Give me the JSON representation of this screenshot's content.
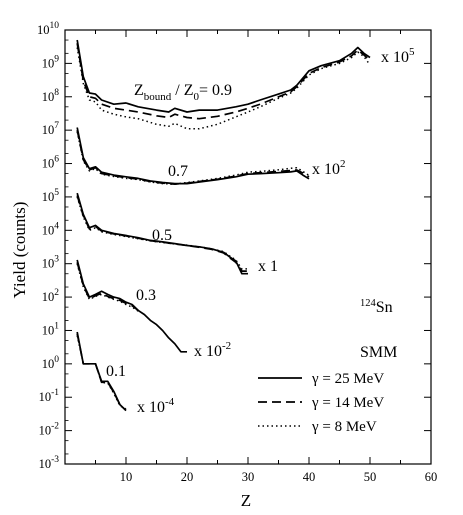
{
  "chart_data": {
    "type": "line",
    "title": "",
    "xlabel": "Z",
    "ylabel": "Yield (counts)",
    "xlim": [
      0,
      60
    ],
    "ylim": [
      0.001,
      10000000000
    ],
    "y_scale": "log",
    "x_ticks": [
      "10",
      "20",
      "30",
      "40",
      "50",
      "60"
    ],
    "y_ticks": [
      {
        "base": "10",
        "exp": "10"
      },
      {
        "base": "10",
        "exp": "9"
      },
      {
        "base": "10",
        "exp": "8"
      },
      {
        "base": "10",
        "exp": "7"
      },
      {
        "base": "10",
        "exp": "6"
      },
      {
        "base": "10",
        "exp": "5"
      },
      {
        "base": "10",
        "exp": "4"
      },
      {
        "base": "10",
        "exp": "3"
      },
      {
        "base": "10",
        "exp": "2"
      },
      {
        "base": "10",
        "exp": "1"
      },
      {
        "base": "10",
        "exp": "0"
      },
      {
        "base": "10",
        "exp": "-1"
      },
      {
        "base": "10",
        "exp": "-2"
      },
      {
        "base": "10",
        "exp": "-3"
      }
    ],
    "grid": false,
    "legend_position": "bottom-right",
    "legend": [
      {
        "label": "γ = 25 MeV",
        "dash": "solid"
      },
      {
        "label": "γ = 14 MeV",
        "dash": "dashed"
      },
      {
        "label": "γ =  8 MeV",
        "dash": "dotted"
      }
    ],
    "annotations": {
      "nucleus": {
        "mass": "124",
        "symbol": "Sn"
      },
      "model": "SMM"
    },
    "groups": [
      {
        "ratio_prefix": "Z",
        "ratio_sub": "bound",
        "ratio_mid": " / Z",
        "ratio_sub2": "0",
        "ratio_value": "= 0.9",
        "scale_label": {
          "base": "x 10",
          "exp": "5"
        },
        "series": [
          {
            "dash": "solid",
            "x": [
              2,
              3,
              4,
              5,
              6,
              8,
              10,
              12,
              15,
              17,
              18,
              20,
              22,
              25,
              28,
              30,
              32,
              35,
              37,
              38,
              40,
              42,
              45,
              47,
              48,
              49,
              50
            ],
            "y": [
              5000000000.0,
              400000000.0,
              130000000.0,
              120000000.0,
              80000000.0,
              60000000.0,
              65000000.0,
              50000000.0,
              40000000.0,
              35000000.0,
              45000000.0,
              35000000.0,
              40000000.0,
              40000000.0,
              50000000.0,
              60000000.0,
              80000000.0,
              120000000.0,
              160000000.0,
              220000000.0,
              600000000.0,
              850000000.0,
              1200000000.0,
              2000000000.0,
              3000000000.0,
              2000000000.0,
              1500000000.0
            ]
          },
          {
            "dash": "dashed",
            "x": [
              2,
              3,
              4,
              5,
              6,
              8,
              10,
              12,
              15,
              17,
              18,
              20,
              22,
              25,
              28,
              30,
              32,
              35,
              37,
              38,
              40,
              42,
              45,
              47,
              48,
              49,
              50
            ],
            "y": [
              4000000000.0,
              300000000.0,
              100000000.0,
              90000000.0,
              60000000.0,
              45000000.0,
              40000000.0,
              35000000.0,
              27000000.0,
              24000000.0,
              30000000.0,
              24000000.0,
              22000000.0,
              26000000.0,
              35000000.0,
              45000000.0,
              60000000.0,
              100000000.0,
              140000000.0,
              200000000.0,
              500000000.0,
              750000000.0,
              1100000000.0,
              1700000000.0,
              2500000000.0,
              1800000000.0,
              1200000000.0
            ]
          },
          {
            "dash": "dotted",
            "x": [
              2,
              3,
              4,
              5,
              6,
              8,
              10,
              12,
              15,
              17,
              18,
              20,
              22,
              25,
              28,
              30,
              32,
              35,
              37,
              38,
              40,
              42,
              45,
              47,
              48,
              49,
              50
            ],
            "y": [
              3000000000.0,
              250000000.0,
              80000000.0,
              70000000.0,
              40000000.0,
              30000000.0,
              25000000.0,
              22000000.0,
              15000000.0,
              13000000.0,
              16000000.0,
              11000000.0,
              11000000.0,
              15000000.0,
              25000000.0,
              35000000.0,
              50000000.0,
              90000000.0,
              130000000.0,
              180000000.0,
              450000000.0,
              700000000.0,
              1000000000.0,
              1500000000.0,
              2200000000.0,
              1600000000.0,
              900000000.0
            ]
          }
        ]
      },
      {
        "ratio_value": "0.7",
        "scale_label": {
          "base": "x 10",
          "exp": "2"
        },
        "series": [
          {
            "dash": "solid",
            "x": [
              2,
              3,
              4,
              5,
              6,
              8,
              10,
              12,
              14,
              16,
              18,
              20,
              22,
              25,
              28,
              30,
              32,
              35,
              37,
              38,
              39,
              40
            ],
            "y": [
              12000000.0,
              1500000.0,
              700000.0,
              800000.0,
              550000.0,
              450000.0,
              400000.0,
              360000.0,
              300000.0,
              270000.0,
              250000.0,
              250000.0,
              280000.0,
              330000.0,
              400000.0,
              480000.0,
              500000.0,
              530000.0,
              560000.0,
              600000.0,
              450000.0,
              350000.0
            ]
          },
          {
            "dash": "dashed",
            "x": [
              2,
              3,
              4,
              5,
              6,
              8,
              10,
              12,
              14,
              16,
              18,
              20,
              22,
              25,
              28,
              30,
              32,
              35,
              37,
              38,
              39,
              40
            ],
            "y": [
              10000000.0,
              1300000.0,
              650000.0,
              750000.0,
              500000.0,
              430000.0,
              380000.0,
              340000.0,
              290000.0,
              260000.0,
              240000.0,
              260000.0,
              290000.0,
              340000.0,
              420000.0,
              500000.0,
              530000.0,
              580000.0,
              620000.0,
              640000.0,
              520000.0,
              400000.0
            ]
          },
          {
            "dash": "dotted",
            "x": [
              2,
              3,
              4,
              5,
              6,
              8,
              10,
              12,
              14,
              16,
              18,
              20,
              22,
              25,
              28,
              30,
              32,
              35,
              37,
              38,
              39,
              40
            ],
            "y": [
              9000000.0,
              1200000.0,
              600000.0,
              700000.0,
              480000.0,
              410000.0,
              360000.0,
              330000.0,
              280000.0,
              250000.0,
              240000.0,
              270000.0,
              300000.0,
              360000.0,
              450000.0,
              550000.0,
              580000.0,
              650000.0,
              720000.0,
              750000.0,
              580000.0,
              440000.0
            ]
          }
        ]
      },
      {
        "ratio_value": "0.5",
        "scale_label": {
          "base": "x ",
          "exp": "1",
          "plain": true
        },
        "series": [
          {
            "dash": "solid",
            "x": [
              2,
              3,
              4,
              5,
              6,
              8,
              10,
              12,
              14,
              16,
              18,
              20,
              22,
              24,
              26,
              27,
              28,
              29,
              30
            ],
            "y": [
              130000.0,
              30000.0,
              12000.0,
              14000.0,
              10000.0,
              8000.0,
              7000.0,
              6000.0,
              5000.0,
              4500.0,
              4000.0,
              3500.0,
              3200.0,
              2800.0,
              2200.0,
              1600.0,
              1200.0,
              500.0,
              500.0
            ]
          },
          {
            "dash": "dashed",
            "x": [
              2,
              3,
              4,
              5,
              6,
              8,
              10,
              12,
              14,
              16,
              18,
              20,
              22,
              24,
              26,
              27,
              28,
              29,
              30
            ],
            "y": [
              110000.0,
              27000.0,
              11000.0,
              13000.0,
              9500.0,
              7800.0,
              6800.0,
              5800.0,
              4900.0,
              4400.0,
              3900.0,
              3500.0,
              3100.0,
              2700.0,
              2100.0,
              1500.0,
              1100.0,
              600.0,
              600.0
            ]
          },
          {
            "dash": "dotted",
            "x": [
              2,
              3,
              4,
              5,
              6,
              8,
              10,
              12,
              14,
              16,
              18,
              20,
              22,
              24,
              26,
              27,
              28,
              29,
              30
            ],
            "y": [
              100000.0,
              25000.0,
              10000.0,
              12000.0,
              9000.0,
              7500.0,
              6500.0,
              5600.0,
              4800.0,
              4300.0,
              3900.0,
              3600.0,
              3200.0,
              2800.0,
              2300.0,
              1700.0,
              1300.0,
              700.0,
              700.0
            ]
          }
        ]
      },
      {
        "ratio_value": "0.3",
        "scale_label": {
          "base": "x 10",
          "exp": "-2"
        },
        "series": [
          {
            "dash": "solid",
            "x": [
              2,
              3,
              4,
              5,
              6,
              7,
              8,
              9,
              10,
              11,
              12,
              13,
              14,
              15,
              16,
              17,
              18,
              19,
              20
            ],
            "y": [
              1300.0,
              250.0,
              100.0,
              120.0,
              150.0,
              120.0,
              100.0,
              90.0,
              70.0,
              60.0,
              40.0,
              30.0,
              20.0,
              15.0,
              10.0,
              6,
              4,
              2.3,
              2.3
            ]
          },
          {
            "dash": "dashed",
            "x": [
              2,
              3,
              4,
              5,
              6,
              7,
              8,
              9,
              10,
              11,
              12
            ],
            "y": [
              1100.0,
              220.0,
              90.0,
              110.0,
              130.0,
              105.0,
              90.0,
              80.0,
              65.0,
              55.0,
              40.0
            ]
          },
          {
            "dash": "dotted",
            "x": [
              2,
              3,
              4,
              5,
              6,
              7,
              8,
              9,
              10,
              11,
              12
            ],
            "y": [
              1000.0,
              200.0,
              85.0,
              105.0,
              120.0,
              100.0,
              85.0,
              75.0,
              60.0,
              50.0,
              38.0
            ]
          }
        ]
      },
      {
        "ratio_value": "0.1",
        "scale_label": {
          "base": "x 10",
          "exp": "-4"
        },
        "series": [
          {
            "dash": "solid",
            "x": [
              2,
              3,
              4,
              5,
              6,
              7,
              8,
              9,
              10
            ],
            "y": [
              9,
              1,
              1,
              1,
              0.3,
              0.3,
              0.15,
              0.06,
              0.04
            ]
          },
          {
            "dash": "dashed",
            "x": [
              2,
              3,
              4,
              5,
              6,
              7,
              8,
              9,
              10
            ],
            "y": [
              8,
              1,
              1,
              1,
              0.28,
              0.28,
              0.14,
              0.06,
              0.04
            ]
          },
          {
            "dash": "dotted",
            "x": [
              2,
              3,
              4,
              5,
              6,
              7,
              8,
              9,
              10
            ],
            "y": [
              7,
              1,
              1,
              1,
              0.27,
              0.27,
              0.13,
              0.055,
              0.045
            ]
          }
        ]
      }
    ]
  }
}
